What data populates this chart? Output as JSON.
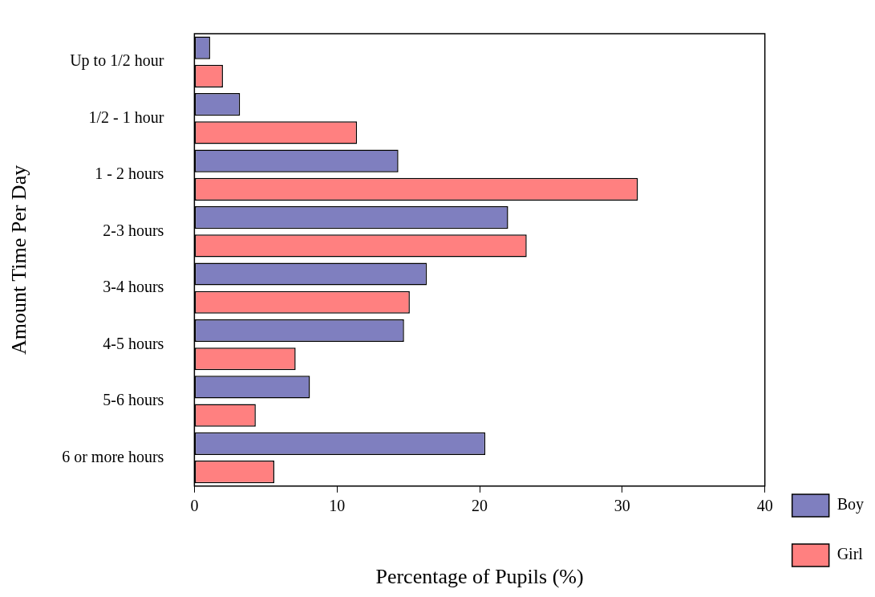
{
  "chart_data": {
    "type": "bar",
    "orientation": "horizontal",
    "xlabel": "Percentage of Pupils (%)",
    "ylabel": "Amount Time Per Day",
    "categories": [
      "Up to 1/2 hour",
      "1/2 - 1 hour",
      "1 - 2 hours",
      "2-3 hours",
      "3-4 hours",
      "4-5 hours",
      "5-6 hours",
      "6 or more hours"
    ],
    "series": [
      {
        "name": "Boy",
        "color": "#7f7fbf",
        "values": [
          1.1,
          3.2,
          14.3,
          22.0,
          16.3,
          14.7,
          8.1,
          20.4
        ]
      },
      {
        "name": "Girl",
        "color": "#ff8080",
        "values": [
          2.0,
          11.4,
          31.1,
          23.3,
          15.1,
          7.1,
          4.3,
          5.6
        ]
      }
    ],
    "xlim": [
      0,
      40
    ],
    "xticks": [
      0,
      10,
      20,
      30,
      40
    ],
    "grid": false,
    "legend": "bottom right"
  }
}
